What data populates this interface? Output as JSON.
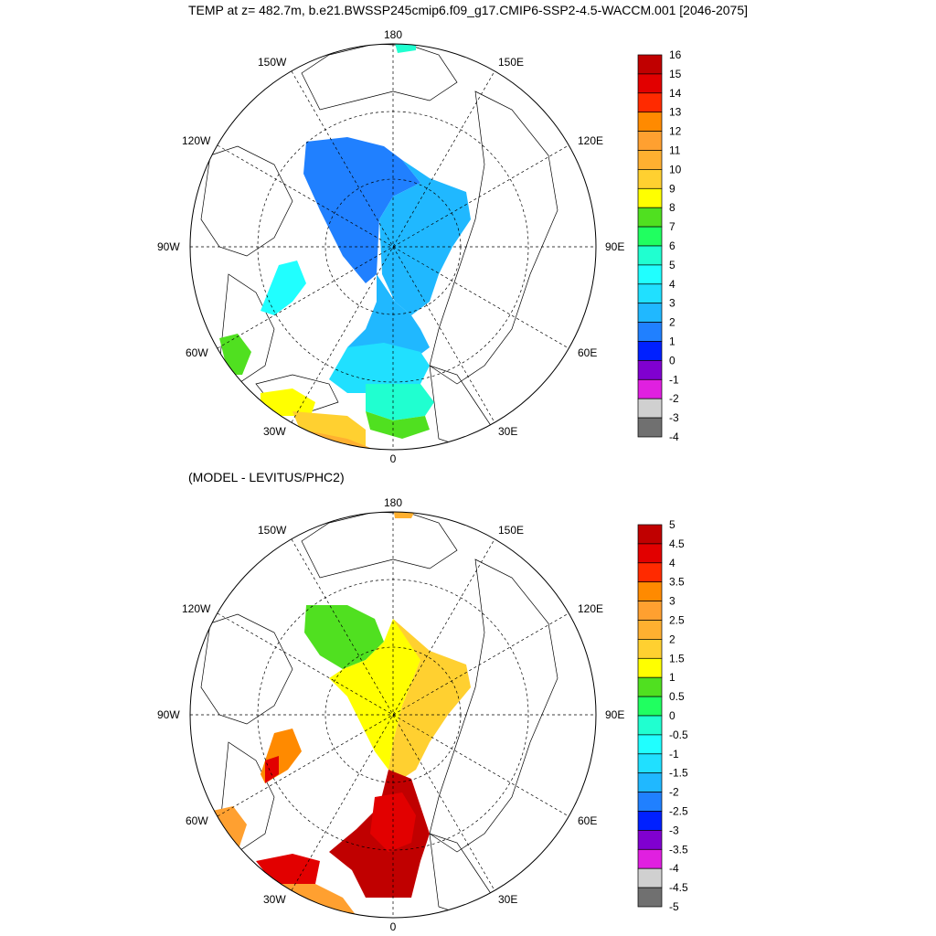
{
  "title": "TEMP at z= 482.7m, b.e21.BWSSP245cmip6.f09_g17.CMIP6-SSP2-4.5-WACCM.001 [2046-2075]",
  "subtitle": "(MODEL - LEVITUS/PHC2)",
  "longitude_labels": [
    "180",
    "150E",
    "120E",
    "90E",
    "60E",
    "30E",
    "0",
    "30W",
    "60W",
    "90W",
    "120W",
    "150W"
  ],
  "panels": [
    {
      "name": "model",
      "colorbar": {
        "labels": [
          "16",
          "15",
          "14",
          "13",
          "12",
          "11",
          "10",
          "9",
          "8",
          "7",
          "6",
          "5",
          "4",
          "3",
          "2",
          "1",
          "0",
          "-1",
          "-2",
          "-3",
          "-4"
        ],
        "colors": [
          "#c00000",
          "#e20000",
          "#ff2a00",
          "#ff8a00",
          "#ffa030",
          "#ffb030",
          "#ffd030",
          "#ffff00",
          "#50e020",
          "#20ff60",
          "#20ffd0",
          "#20ffff",
          "#20e0ff",
          "#20b8ff",
          "#2080ff",
          "#0020ff",
          "#8000d0",
          "#e020e0",
          "#d0d0d0",
          "#707070"
        ]
      }
    },
    {
      "name": "difference",
      "colorbar": {
        "labels": [
          "5",
          "4.5",
          "4",
          "3.5",
          "3",
          "2.5",
          "2",
          "1.5",
          "1",
          "0.5",
          "0",
          "-0.5",
          "-1",
          "-1.5",
          "-2",
          "-2.5",
          "-3",
          "-3.5",
          "-4",
          "-4.5",
          "-5"
        ],
        "colors": [
          "#c00000",
          "#e20000",
          "#ff2a00",
          "#ff8a00",
          "#ffa030",
          "#ffb030",
          "#ffd030",
          "#ffff00",
          "#50e020",
          "#20ff60",
          "#20ffd0",
          "#20ffff",
          "#20e0ff",
          "#20b8ff",
          "#2080ff",
          "#0020ff",
          "#8000d0",
          "#e020e0",
          "#d0d0d0",
          "#707070"
        ]
      }
    }
  ]
}
